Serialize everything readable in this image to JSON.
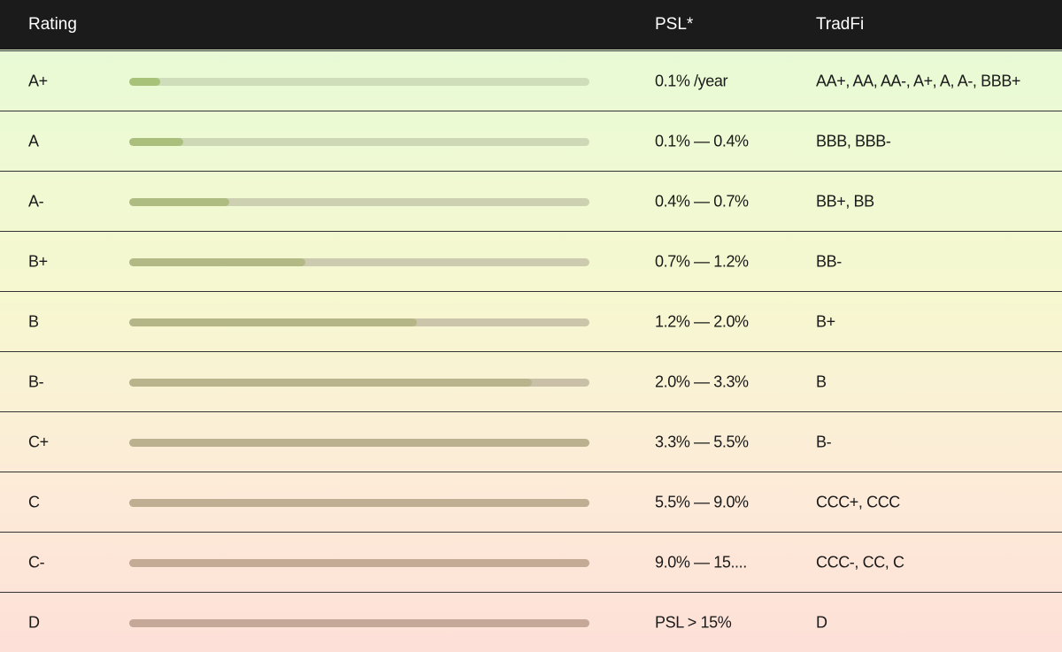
{
  "header": {
    "rating": "Rating",
    "psl": "PSL*",
    "tradfi": "TradFi"
  },
  "rows": [
    {
      "rating": "A+",
      "bar": 6.7,
      "psl": "0.1% /year",
      "tradfi": "AA+, AA, AA-, A+, A, A-, BBB+"
    },
    {
      "rating": "A",
      "bar": 11.7,
      "psl": "0.1% — 0.4%",
      "tradfi": "BBB, BBB-"
    },
    {
      "rating": "A-",
      "bar": 21.7,
      "psl": "0.4% — 0.7%",
      "tradfi": "BB+, BB"
    },
    {
      "rating": "B+",
      "bar": 38.3,
      "psl": "0.7% — 1.2%",
      "tradfi": "BB-"
    },
    {
      "rating": "B",
      "bar": 62.5,
      "psl": "1.2% — 2.0%",
      "tradfi": "B+"
    },
    {
      "rating": "B-",
      "bar": 87.5,
      "psl": "2.0% — 3.3%",
      "tradfi": "B"
    },
    {
      "rating": "C+",
      "bar": 100,
      "psl": "3.3% — 5.5%",
      "tradfi": "B-"
    },
    {
      "rating": "C",
      "bar": 100,
      "psl": "5.5% — 9.0%",
      "tradfi": "CCC+, CCC"
    },
    {
      "rating": "C-",
      "bar": 100,
      "psl": "9.0% — 15....",
      "tradfi": "CCC-, CC, C"
    },
    {
      "rating": "D",
      "bar": 100,
      "psl": "PSL > 15%",
      "tradfi": "D"
    }
  ]
}
